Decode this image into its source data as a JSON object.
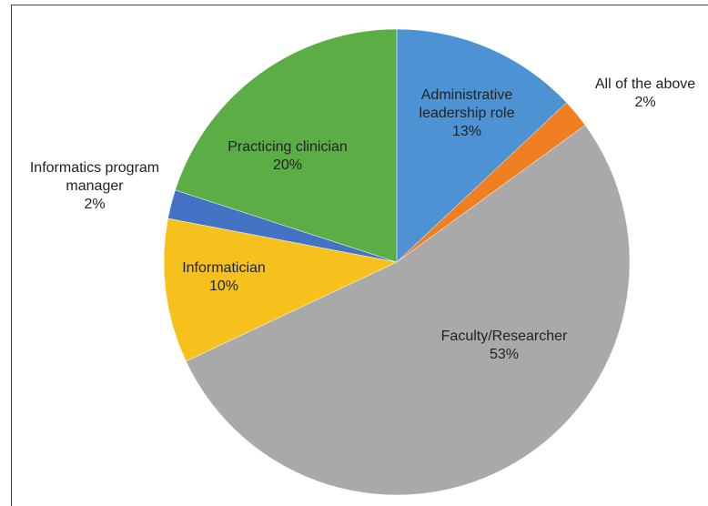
{
  "chart_data": {
    "type": "pie",
    "categories": [
      "Administrative leadership role",
      "All of the above",
      "Faculty/Researcher",
      "Informatician",
      "Informatics program manager",
      "Practicing clinician"
    ],
    "values": [
      13,
      2,
      53,
      10,
      2,
      20
    ],
    "value_labels": [
      "13%",
      "2%",
      "53%",
      "10%",
      "2%",
      "20%"
    ],
    "colors": [
      "#4d93d3",
      "#f07f22",
      "#a9a9a9",
      "#f6c11d",
      "#4472c4",
      "#5bad45"
    ]
  }
}
